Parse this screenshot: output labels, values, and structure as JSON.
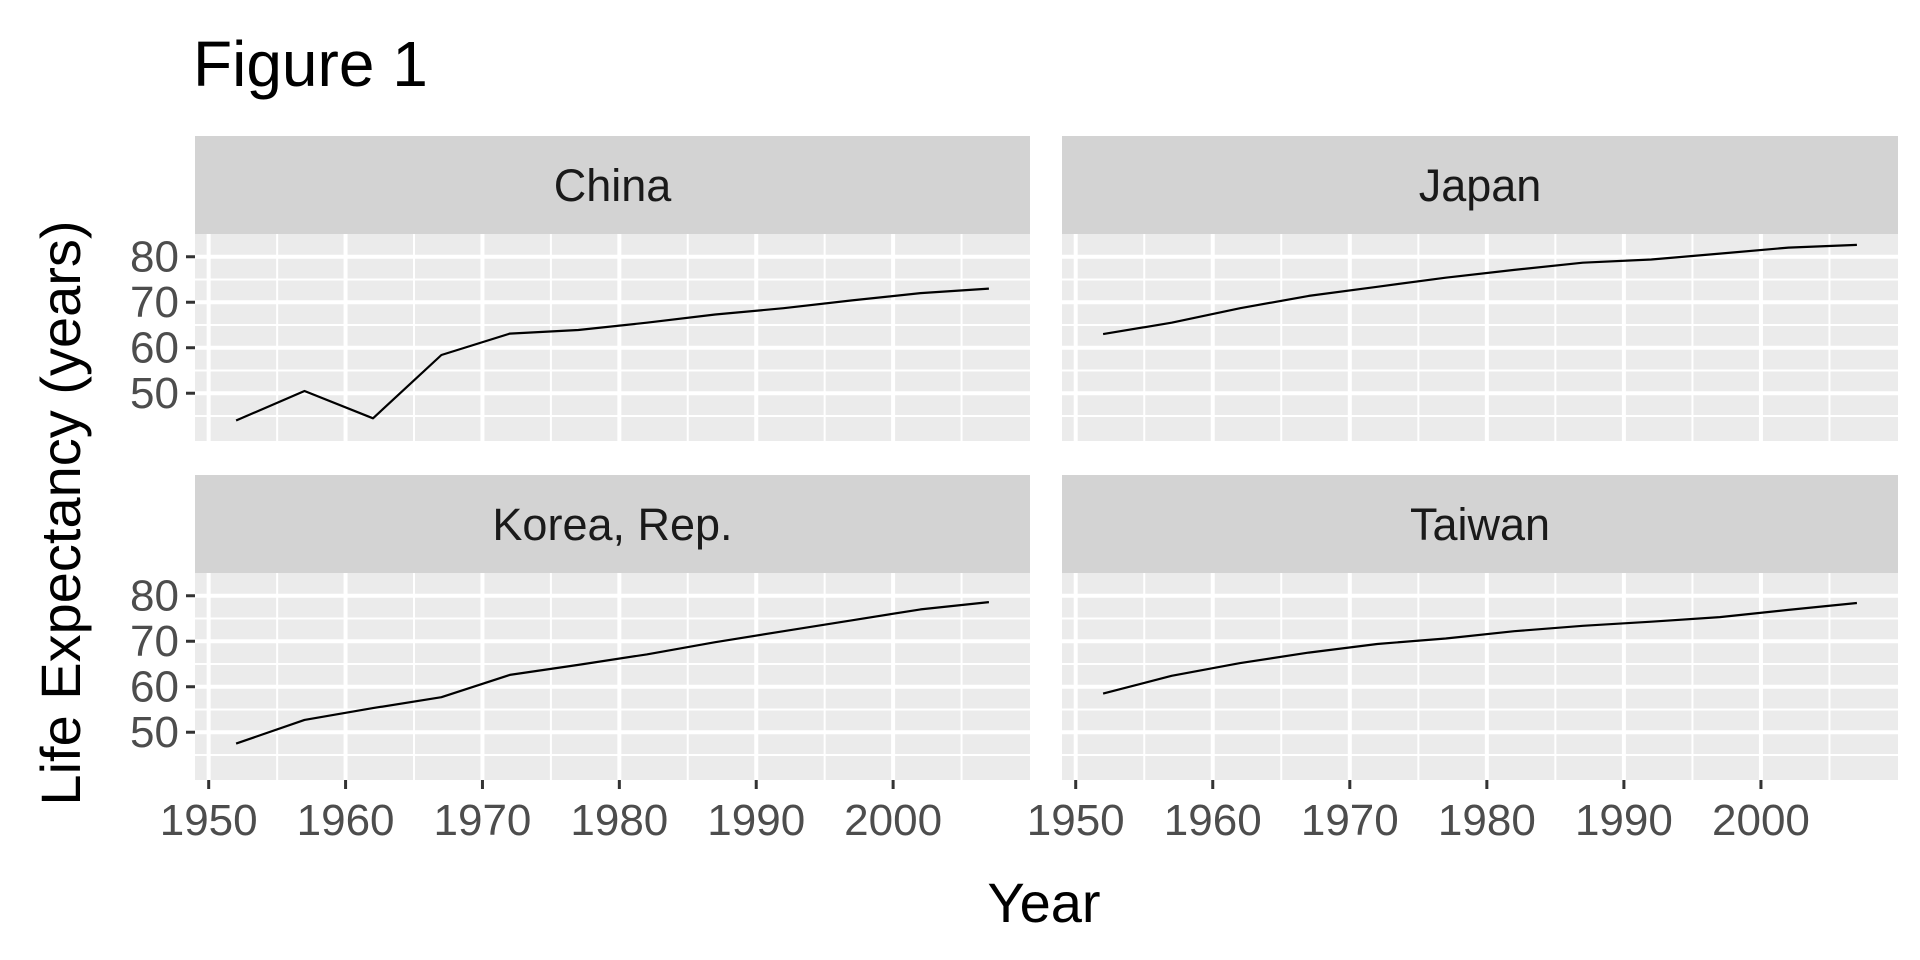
{
  "chart_data": {
    "type": "line",
    "title": "Figure 1",
    "xlabel": "Year",
    "ylabel": "Life Expectancy (years)",
    "xlim": [
      1949,
      2010
    ],
    "ylim": [
      39.5,
      85
    ],
    "x_ticks": [
      1950,
      1960,
      1970,
      1980,
      1990,
      2000
    ],
    "y_ticks": [
      50,
      60,
      70,
      80
    ],
    "grid": true,
    "facets": [
      "China",
      "Japan",
      "Korea, Rep.",
      "Taiwan"
    ],
    "x": [
      1952,
      1957,
      1962,
      1967,
      1972,
      1977,
      1982,
      1987,
      1992,
      1997,
      2002,
      2007
    ],
    "series": [
      {
        "name": "China",
        "values": [
          44.0,
          50.5,
          44.5,
          58.4,
          63.1,
          63.9,
          65.5,
          67.3,
          68.7,
          70.4,
          72.0,
          73.0
        ]
      },
      {
        "name": "Japan",
        "values": [
          63.0,
          65.5,
          68.7,
          71.4,
          73.4,
          75.4,
          77.1,
          78.7,
          79.4,
          80.7,
          82.0,
          82.6
        ]
      },
      {
        "name": "Korea, Rep.",
        "values": [
          47.5,
          52.7,
          55.3,
          57.7,
          62.6,
          64.8,
          67.1,
          69.8,
          72.2,
          74.6,
          77.0,
          78.6
        ]
      },
      {
        "name": "Taiwan",
        "values": [
          58.5,
          62.4,
          65.2,
          67.5,
          69.4,
          70.6,
          72.2,
          73.4,
          74.3,
          75.3,
          76.9,
          78.4
        ]
      }
    ]
  }
}
